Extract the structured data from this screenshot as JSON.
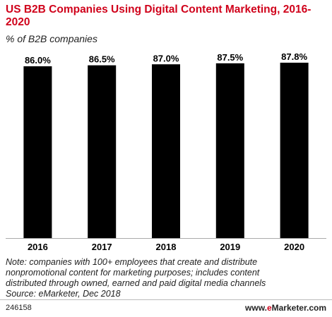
{
  "header": {
    "title": "US B2B Companies Using Digital Content Marketing, 2016-2020",
    "subtitle": "% of B2B companies"
  },
  "chart_data": {
    "type": "bar",
    "categories": [
      "2016",
      "2017",
      "2018",
      "2019",
      "2020"
    ],
    "values": [
      86.0,
      86.5,
      87.0,
      87.5,
      87.8
    ],
    "value_labels": [
      "86.0%",
      "86.5%",
      "87.0%",
      "87.5%",
      "87.8%"
    ],
    "bar_color": "#000000",
    "grid": false,
    "legend": "none",
    "ylim": [
      0,
      100
    ]
  },
  "note": {
    "lines": [
      "Note: companies with 100+ employees that create and distribute",
      "nonpromotional content for marketing purposes; includes content",
      "distributed through owned, earned and paid digital media channels",
      "Source: eMarketer, Dec 2018"
    ]
  },
  "footer": {
    "chart_id": "246158",
    "brand_prefix": "www.",
    "brand_e": "e",
    "brand_suffix": "Marketer.com"
  },
  "colors": {
    "title": "#d0021b",
    "brand_accent": "#d0021b",
    "axis": "#aaaaaa"
  }
}
